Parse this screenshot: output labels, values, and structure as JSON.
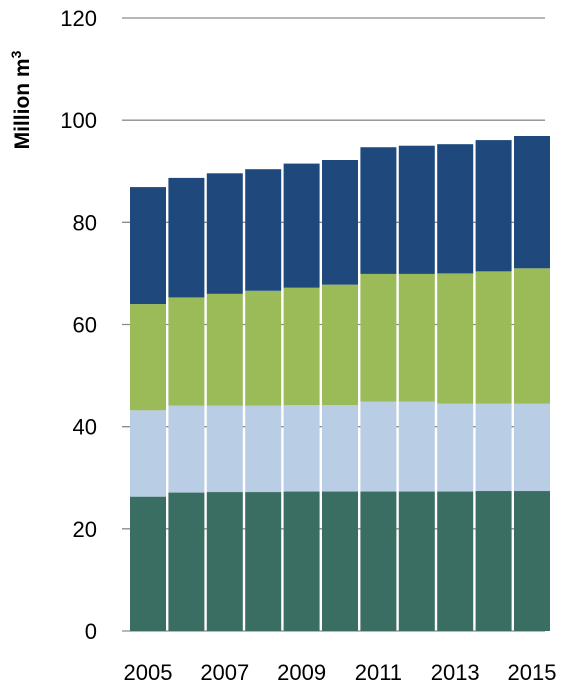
{
  "chart_data": {
    "type": "bar",
    "stacked": true,
    "ylabel": "Million m",
    "ylabel_superscript": "3",
    "ylim": [
      0,
      120
    ],
    "yticks": [
      0,
      20,
      40,
      60,
      80,
      100,
      120
    ],
    "grid": true,
    "legend": "none",
    "categories": [
      "2005",
      "2006",
      "2007",
      "2008",
      "2009",
      "2010",
      "2011",
      "2012",
      "2013",
      "2014",
      "2015"
    ],
    "xtick_labels": [
      "2005",
      "",
      "2007",
      "",
      "2009",
      "",
      "2011",
      "",
      "2013",
      "",
      "2015"
    ],
    "series": [
      {
        "color": "#3b6e63",
        "values": [
          26.3,
          27.1,
          27.2,
          27.2,
          27.3,
          27.3,
          27.3,
          27.3,
          27.3,
          27.4,
          27.4
        ]
      },
      {
        "color": "#b9cde5",
        "values": [
          16.9,
          17.0,
          16.9,
          16.9,
          16.9,
          16.9,
          17.6,
          17.6,
          17.2,
          17.1,
          17.1
        ]
      },
      {
        "color": "#9bbb59",
        "values": [
          20.8,
          21.2,
          21.9,
          22.5,
          23.0,
          23.6,
          25.0,
          25.0,
          25.5,
          25.9,
          26.5
        ]
      },
      {
        "color": "#1f497d",
        "values": [
          22.9,
          23.4,
          23.6,
          23.8,
          24.3,
          24.4,
          24.8,
          25.1,
          25.3,
          25.7,
          25.9
        ]
      }
    ]
  }
}
